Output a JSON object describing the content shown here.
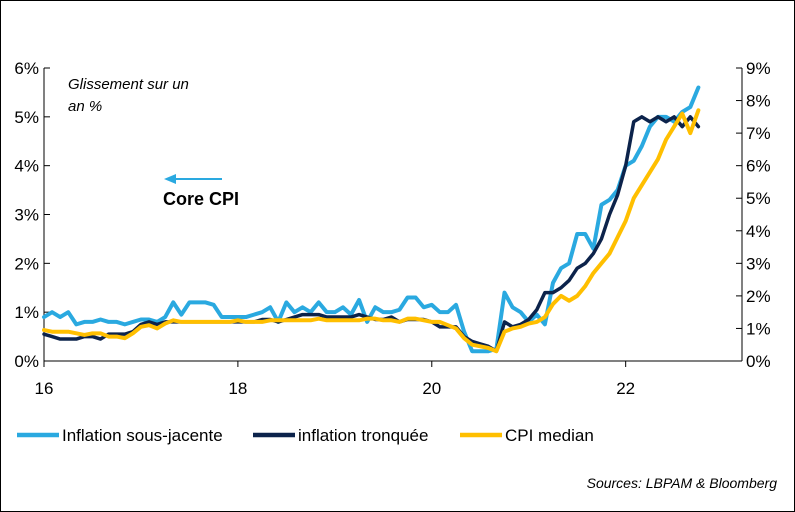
{
  "chart_data": {
    "type": "line",
    "annotation_text_1": "Glissement sur un",
    "annotation_text_2": "an %",
    "core_label": "Core CPI",
    "source": "Sources: LBPAM & Bloomberg",
    "x_tick_labels": [
      "16",
      "18",
      "20",
      "22"
    ],
    "x_tick_values": [
      2016,
      2018,
      2020,
      2022
    ],
    "xlim": [
      2016,
      2023.2
    ],
    "y_left_ticks": [
      "0%",
      "1%",
      "2%",
      "3%",
      "4%",
      "5%",
      "6%"
    ],
    "ylim_left": [
      0,
      6
    ],
    "y_right_ticks": [
      "0%",
      "1%",
      "2%",
      "3%",
      "4%",
      "5%",
      "6%",
      "7%",
      "8%",
      "9%"
    ],
    "ylim_right": [
      0,
      9
    ],
    "grid": false,
    "legend_position": "bottom",
    "colors": {
      "Inflation sous-jacente": "#2AA9E0",
      "inflation tronquée": "#0C234B",
      "CPI median": "#FFBF00",
      "arrow": "#2AA9E0"
    },
    "series": [
      {
        "name": "Inflation sous-jacente",
        "axis": "left",
        "x_start": 2016.0,
        "x_step": 0.0833333,
        "values": [
          0.9,
          1.0,
          0.9,
          1.0,
          0.75,
          0.8,
          0.8,
          0.85,
          0.8,
          0.8,
          0.75,
          0.8,
          0.85,
          0.85,
          0.8,
          0.9,
          1.2,
          0.95,
          1.2,
          1.2,
          1.2,
          1.15,
          0.9,
          0.9,
          0.9,
          0.9,
          0.95,
          1.0,
          1.1,
          0.8,
          1.2,
          1.0,
          1.1,
          1.0,
          1.2,
          1.0,
          1.0,
          1.1,
          0.95,
          1.25,
          0.8,
          1.1,
          1.0,
          1.0,
          1.05,
          1.3,
          1.3,
          1.1,
          1.15,
          1.0,
          1.0,
          1.15,
          0.6,
          0.2,
          0.2,
          0.2,
          0.25,
          1.4,
          1.1,
          1.0,
          0.8,
          0.95,
          0.75,
          1.6,
          1.9,
          2.0,
          2.6,
          2.6,
          2.3,
          3.2,
          3.3,
          3.5,
          4.0,
          4.1,
          4.4,
          4.8,
          5.0,
          5.0,
          4.9,
          5.1,
          5.2,
          5.6
        ]
      },
      {
        "name": "inflation tronquée",
        "axis": "left",
        "x_start": 2016.0,
        "x_step": 0.0833333,
        "values": [
          0.55,
          0.5,
          0.45,
          0.45,
          0.45,
          0.5,
          0.5,
          0.45,
          0.55,
          0.55,
          0.55,
          0.6,
          0.75,
          0.8,
          0.75,
          0.8,
          0.8,
          0.8,
          0.8,
          0.8,
          0.8,
          0.8,
          0.8,
          0.8,
          0.8,
          0.8,
          0.8,
          0.85,
          0.85,
          0.8,
          0.85,
          0.9,
          0.95,
          0.95,
          0.95,
          0.9,
          0.9,
          0.9,
          0.9,
          0.95,
          0.9,
          0.85,
          0.85,
          0.9,
          0.8,
          0.85,
          0.85,
          0.85,
          0.8,
          0.7,
          0.7,
          0.7,
          0.5,
          0.4,
          0.35,
          0.3,
          0.2,
          0.8,
          0.7,
          0.75,
          0.85,
          1.05,
          1.4,
          1.4,
          1.5,
          1.65,
          1.9,
          2.0,
          2.2,
          2.5,
          3.0,
          3.4,
          4.0,
          4.9,
          5.0,
          4.9,
          5.0,
          4.9,
          5.0,
          4.8,
          5.0,
          4.8
        ]
      },
      {
        "name": "CPI median",
        "axis": "right",
        "x_start": 2016.0,
        "x_step": 0.0833333,
        "values": [
          0.95,
          0.9,
          0.9,
          0.9,
          0.85,
          0.8,
          0.85,
          0.85,
          0.75,
          0.75,
          0.7,
          0.85,
          1.05,
          1.1,
          1.0,
          1.15,
          1.25,
          1.2,
          1.2,
          1.2,
          1.2,
          1.2,
          1.2,
          1.2,
          1.25,
          1.2,
          1.2,
          1.2,
          1.25,
          1.25,
          1.25,
          1.25,
          1.25,
          1.25,
          1.3,
          1.25,
          1.25,
          1.25,
          1.25,
          1.25,
          1.3,
          1.3,
          1.25,
          1.25,
          1.2,
          1.3,
          1.3,
          1.25,
          1.2,
          1.2,
          1.1,
          1.0,
          0.7,
          0.5,
          0.45,
          0.4,
          0.3,
          0.9,
          1.0,
          1.05,
          1.15,
          1.2,
          1.35,
          1.75,
          2.0,
          1.85,
          2.0,
          2.3,
          2.7,
          3.0,
          3.3,
          3.8,
          4.3,
          5.0,
          5.4,
          5.8,
          6.2,
          6.8,
          7.2,
          7.6,
          7.0,
          7.7
        ]
      }
    ]
  }
}
